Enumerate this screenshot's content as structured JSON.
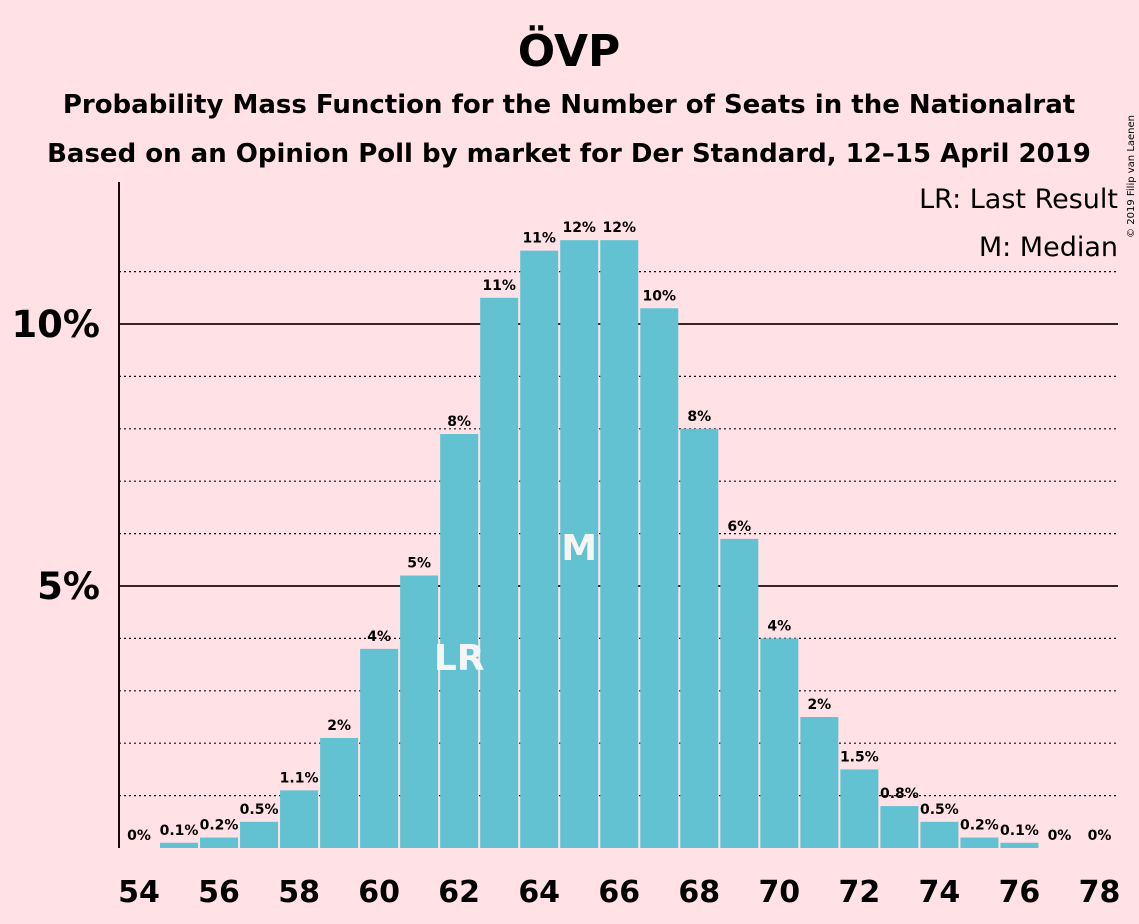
{
  "chart_data": {
    "type": "bar",
    "title": "ÖVP",
    "subtitle_1": "Probability Mass Function for the Number of Seats in the Nationalrat",
    "subtitle_2": "Based on an Opinion Poll by market for Der Standard, 12–15 April 2019",
    "copyright": "© 2019 Filip van Laenen",
    "legend": {
      "last_result": "LR: Last Result",
      "median": "M: Median",
      "placement": "top-right"
    },
    "x": [
      54,
      55,
      56,
      57,
      58,
      59,
      60,
      61,
      62,
      63,
      64,
      65,
      66,
      67,
      68,
      69,
      70,
      71,
      72,
      73,
      74,
      75,
      76,
      77,
      78
    ],
    "xtick_labels": [
      "54",
      "56",
      "58",
      "60",
      "62",
      "64",
      "66",
      "68",
      "70",
      "72",
      "74",
      "76",
      "78"
    ],
    "values": [
      0.0,
      0.1,
      0.2,
      0.5,
      1.1,
      2.1,
      3.8,
      5.2,
      7.9,
      10.5,
      11.4,
      11.6,
      11.6,
      10.3,
      8.0,
      5.9,
      4.0,
      2.5,
      1.5,
      0.8,
      0.5,
      0.2,
      0.1,
      0.0,
      0.0
    ],
    "data_labels": [
      "0%",
      "0.1%",
      "0.2%",
      "0.5%",
      "1.1%",
      "2%",
      "4%",
      "5%",
      "8%",
      "11%",
      "11%",
      "12%",
      "12%",
      "10%",
      "8%",
      "6%",
      "4%",
      "2%",
      "1.5%",
      "0.8%",
      "0.5%",
      "0.2%",
      "0.1%",
      "0%",
      "0%"
    ],
    "markers": {
      "last_result": {
        "x": 62,
        "label": "LR"
      },
      "median": {
        "x": 65,
        "label": "M"
      }
    },
    "yticks": [
      {
        "value": 5,
        "label": "5%"
      },
      {
        "value": 10,
        "label": "10%"
      }
    ],
    "ylim": [
      0,
      12.6
    ],
    "grid": "dotted minor lines every 1%, solid lines at 5% and 10%",
    "colors": {
      "bar": "#63c2d1",
      "background": "#ffe1e6",
      "text": "#1a0a10"
    }
  }
}
